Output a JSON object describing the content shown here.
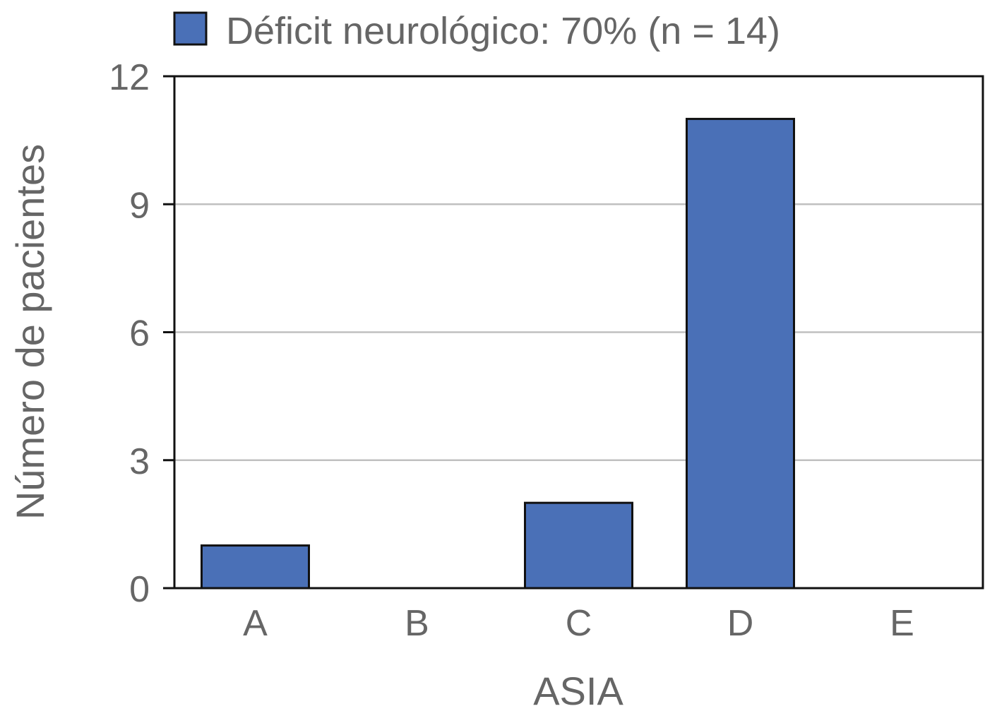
{
  "chart_data": {
    "type": "bar",
    "categories": [
      "A",
      "B",
      "C",
      "D",
      "E"
    ],
    "series": [
      {
        "name": "Déficit neurológico: 70% (n = 14)",
        "values": [
          1,
          0,
          2,
          11,
          0
        ],
        "color": "#4a70b7"
      }
    ],
    "xlabel": "ASIA",
    "ylabel": "Número de pacientes",
    "ylim": [
      0,
      12
    ],
    "yticks": [
      0,
      3,
      6,
      9,
      12
    ],
    "grid": true,
    "legend_position": "top"
  }
}
